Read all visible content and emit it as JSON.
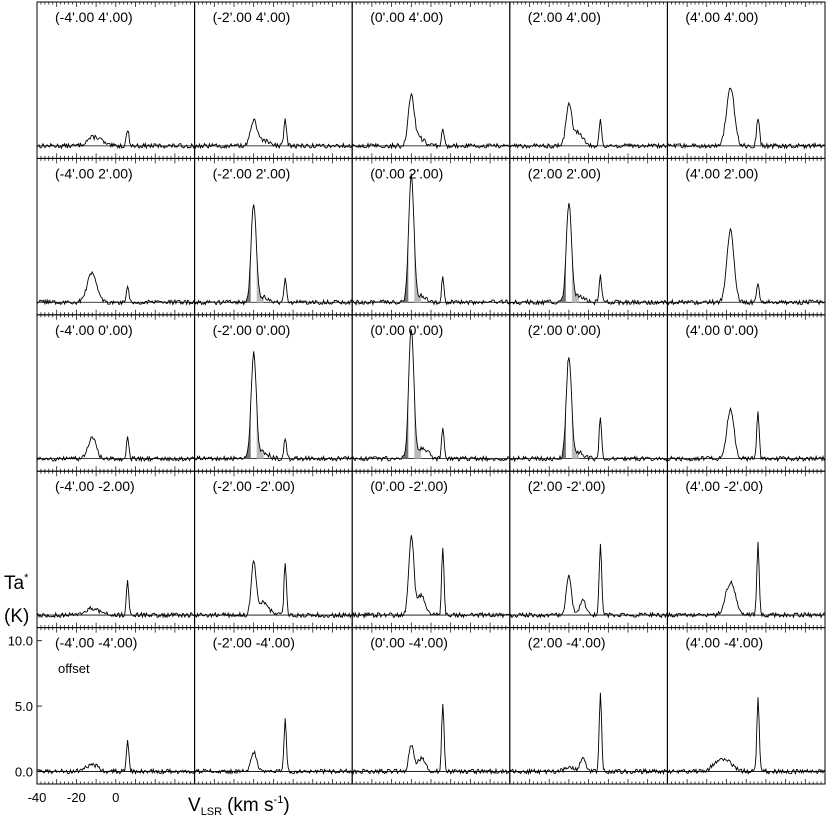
{
  "chart_data": {
    "type": "line",
    "layout": "5x5 grid of spectra",
    "ylabel_main": "Ta",
    "ylabel_sup": "*",
    "ylabel_unit": "(K)",
    "xlabel_main": "V",
    "xlabel_sub": "LSR",
    "xlabel_unit_a": "(km s",
    "xlabel_unit_sup": "-1",
    "xlabel_unit_b": ")",
    "offset_note": "offset",
    "xlim": [
      -40,
      40
    ],
    "ylim": [
      -0.5,
      11
    ],
    "x_ticks": [
      "-40",
      "-20",
      "0"
    ],
    "x_tick_values": [
      -40,
      -20,
      0
    ],
    "y_ticks": [
      "0.0",
      "5.0",
      "10.0"
    ],
    "y_tick_values": [
      0,
      5,
      10
    ],
    "panels": [
      {
        "label": "(-4'.00    4'.00)",
        "row": 0,
        "col": 0,
        "peaks": [
          [
            -12,
            0.6,
            3.0
          ],
          [
            -8,
            0.3,
            2.0
          ],
          [
            6,
            1.2,
            0.7
          ]
        ],
        "wings": false
      },
      {
        "label": "(-2'.00    4'.00)",
        "row": 0,
        "col": 1,
        "peaks": [
          [
            -10,
            1.9,
            1.6
          ],
          [
            -5,
            0.4,
            2.5
          ],
          [
            6,
            2.0,
            0.7
          ]
        ],
        "wings": false
      },
      {
        "label": "(0'.00    4'.00)",
        "row": 0,
        "col": 2,
        "peaks": [
          [
            -10,
            3.7,
            1.5
          ],
          [
            -6,
            0.6,
            2.5
          ],
          [
            6,
            1.4,
            0.6
          ]
        ],
        "wings": false
      },
      {
        "label": "(2'.00    4'.00)",
        "row": 0,
        "col": 3,
        "peaks": [
          [
            -10,
            3.0,
            1.5
          ],
          [
            -5,
            1.0,
            2.5
          ],
          [
            6,
            2.0,
            0.6
          ]
        ],
        "wings": false
      },
      {
        "label": "(4'.00    4'.00)",
        "row": 0,
        "col": 4,
        "peaks": [
          [
            -8,
            4.5,
            2.0
          ],
          [
            6,
            2.2,
            0.7
          ]
        ],
        "wings": false
      },
      {
        "label": "(-4'.00    2'.00)",
        "row": 1,
        "col": 0,
        "peaks": [
          [
            -12,
            2.2,
            2.5
          ],
          [
            6,
            1.2,
            0.6
          ]
        ],
        "wings": false
      },
      {
        "label": "(-2'.00    2'.00)",
        "row": 1,
        "col": 1,
        "peaks": [
          [
            -10,
            7.5,
            1.3
          ],
          [
            -5,
            0.4,
            2.5
          ],
          [
            6,
            1.7,
            0.6
          ]
        ],
        "wings": true
      },
      {
        "label": "(0'.00    2'.00)",
        "row": 1,
        "col": 2,
        "peaks": [
          [
            -10,
            9.8,
            1.3
          ],
          [
            -5,
            0.5,
            2.5
          ],
          [
            6,
            2.0,
            0.6
          ]
        ],
        "wings": true
      },
      {
        "label": "(2'.00    2'.00)",
        "row": 1,
        "col": 3,
        "peaks": [
          [
            -10,
            7.5,
            1.3
          ],
          [
            -5,
            0.5,
            2.5
          ],
          [
            6,
            2.0,
            0.6
          ]
        ],
        "wings": true
      },
      {
        "label": "(4'.00    2'.00)",
        "row": 1,
        "col": 4,
        "peaks": [
          [
            -8,
            5.5,
            1.8
          ],
          [
            6,
            1.5,
            0.6
          ]
        ],
        "wings": false
      },
      {
        "label": "(-4'.00    0'.00)",
        "row": 2,
        "col": 0,
        "peaks": [
          [
            -12,
            1.6,
            2.0
          ],
          [
            6,
            1.6,
            0.6
          ]
        ],
        "wings": false
      },
      {
        "label": "(-2'.00    0'.00)",
        "row": 2,
        "col": 1,
        "peaks": [
          [
            -10,
            8.0,
            1.3
          ],
          [
            -5,
            0.5,
            2.5
          ],
          [
            6,
            1.6,
            0.6
          ]
        ],
        "wings": true
      },
      {
        "label": "(0'.00    0'.00)",
        "row": 2,
        "col": 2,
        "peaks": [
          [
            -10,
            10.0,
            1.3
          ],
          [
            -4,
            0.8,
            2.5
          ],
          [
            6,
            2.3,
            0.6
          ]
        ],
        "wings": true
      },
      {
        "label": "(2'.00    0'.00)",
        "row": 2,
        "col": 3,
        "peaks": [
          [
            -10,
            7.8,
            1.3
          ],
          [
            -5,
            0.5,
            2.5
          ],
          [
            6,
            3.3,
            0.6
          ]
        ],
        "wings": true
      },
      {
        "label": "(4'.00    0'.00)",
        "row": 2,
        "col": 4,
        "peaks": [
          [
            -8,
            3.8,
            1.8
          ],
          [
            6,
            3.6,
            0.6
          ]
        ],
        "wings": false
      },
      {
        "label": "(-4'.00    -2.00)",
        "row": 3,
        "col": 0,
        "peaks": [
          [
            -12,
            0.5,
            4.0
          ],
          [
            6,
            2.5,
            0.6
          ]
        ],
        "wings": false
      },
      {
        "label": "(-2'.00    -2'.00)",
        "row": 3,
        "col": 1,
        "peaks": [
          [
            -10,
            4.0,
            1.2
          ],
          [
            -5,
            1.0,
            2.5
          ],
          [
            6,
            4.0,
            0.6
          ]
        ],
        "wings": false
      },
      {
        "label": "(0'.00    -2'.00)",
        "row": 3,
        "col": 2,
        "peaks": [
          [
            -10,
            6.0,
            1.3
          ],
          [
            -5,
            1.5,
            2.0
          ],
          [
            6,
            5.0,
            0.6
          ]
        ],
        "wings": false
      },
      {
        "label": "(2'.00    -2'.00)",
        "row": 3,
        "col": 3,
        "peaks": [
          [
            -10,
            3.0,
            1.3
          ],
          [
            -3,
            1.2,
            1.5
          ],
          [
            6,
            5.5,
            0.6
          ]
        ],
        "wings": false
      },
      {
        "label": "(4'.00    -2'.00)",
        "row": 3,
        "col": 4,
        "peaks": [
          [
            -8,
            2.5,
            2.5
          ],
          [
            6,
            5.5,
            0.6
          ]
        ],
        "wings": false
      },
      {
        "label": "(-4'.00    -4'.00)",
        "row": 4,
        "col": 0,
        "peaks": [
          [
            -12,
            0.5,
            3.0
          ],
          [
            6,
            2.5,
            0.6
          ]
        ],
        "wings": false
      },
      {
        "label": "(-2'.00    -4'.00)",
        "row": 4,
        "col": 1,
        "peaks": [
          [
            -10,
            1.5,
            1.5
          ],
          [
            6,
            4.0,
            0.6
          ]
        ],
        "wings": false
      },
      {
        "label": "(0'.00    -4'.00)",
        "row": 4,
        "col": 2,
        "peaks": [
          [
            -10,
            2.0,
            1.2
          ],
          [
            -5,
            1.0,
            2.0
          ],
          [
            6,
            5.3,
            0.6
          ]
        ],
        "wings": false
      },
      {
        "label": "(2'.00    -4'.00)",
        "row": 4,
        "col": 3,
        "peaks": [
          [
            -10,
            0.4,
            2.0
          ],
          [
            -3,
            1.0,
            1.5
          ],
          [
            6,
            6.0,
            0.6
          ]
        ],
        "wings": false
      },
      {
        "label": "(4'.00    -4'.00)",
        "row": 4,
        "col": 4,
        "peaks": [
          [
            -12,
            1.0,
            4.0
          ],
          [
            6,
            5.5,
            0.6
          ]
        ],
        "wings": false
      }
    ]
  }
}
